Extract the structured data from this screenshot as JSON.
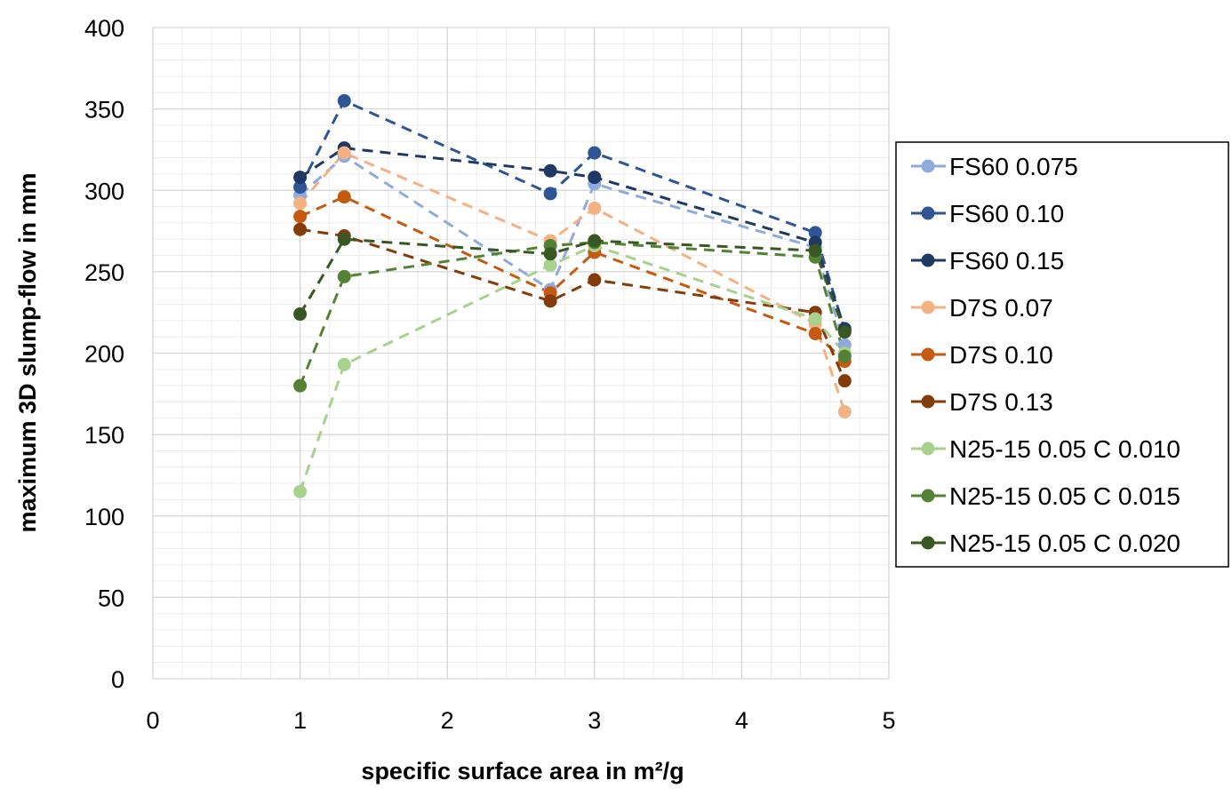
{
  "chart_data": {
    "type": "scatter",
    "mode": "lines-markers-dashed",
    "title": "",
    "xlabel": "specific surface area in m²/g",
    "ylabel": "maximum 3D slump-flow in mm",
    "xlim": [
      0,
      5
    ],
    "ylim": [
      0,
      400
    ],
    "xticks": [
      "0",
      "1",
      "2",
      "3",
      "4",
      "5"
    ],
    "yticks": [
      "0",
      "50",
      "100",
      "150",
      "200",
      "250",
      "300",
      "350",
      "400"
    ],
    "grid": true,
    "legend_position": "right",
    "x": [
      1,
      1.3,
      2.7,
      3,
      4.5,
      4.7
    ],
    "series": [
      {
        "name": "FS60 0.075",
        "color": "#8faadc",
        "values": [
          297,
          321,
          239,
          304,
          265,
          205
        ]
      },
      {
        "name": "FS60 0.10",
        "color": "#2f5597",
        "values": [
          302,
          355,
          298,
          323,
          274,
          214
        ]
      },
      {
        "name": "FS60 0.15",
        "color": "#1f3864",
        "values": [
          308,
          326,
          312,
          308,
          268,
          215
        ]
      },
      {
        "name": "D7S 0.07",
        "color": "#f4b183",
        "values": [
          292,
          323,
          269,
          289,
          218,
          164
        ]
      },
      {
        "name": "D7S 0.10",
        "color": "#c55a11",
        "values": [
          284,
          296,
          237,
          262,
          212,
          195
        ]
      },
      {
        "name": "D7S 0.13",
        "color": "#843c0c",
        "values": [
          276,
          272,
          232,
          245,
          225,
          183
        ]
      },
      {
        "name": "N25-15 0.05 C 0.010",
        "color": "#a9d18e",
        "values": [
          115,
          193,
          254,
          266,
          221,
          200
        ]
      },
      {
        "name": "N25-15 0.05 C 0.015",
        "color": "#548235",
        "values": [
          180,
          247,
          266,
          268,
          259,
          198
        ]
      },
      {
        "name": "N25-15 0.05 C 0.020",
        "color": "#385723",
        "values": [
          224,
          270,
          261,
          269,
          263,
          213
        ]
      }
    ]
  }
}
